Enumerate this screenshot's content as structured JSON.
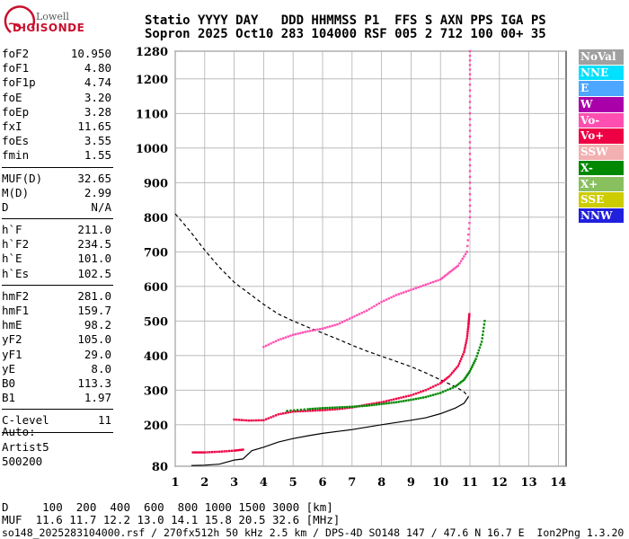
{
  "logo": {
    "line1": "Lowell",
    "line2": "DIGISONDE"
  },
  "header": {
    "row1": "Statio YYYY DAY   DDD HHMMSS P1  FFS S AXN PPS IGA PS",
    "row2": "Sopron 2025 Oct10 283 104000 RSF 005 2 712 100 00+ 35"
  },
  "params": [
    {
      "group": [
        {
          "name": "foF2",
          "value": "10.950"
        },
        {
          "name": "foF1",
          "value": "4.80"
        },
        {
          "name": "foF1p",
          "value": "4.74"
        },
        {
          "name": "foE",
          "value": "3.20"
        },
        {
          "name": "foEp",
          "value": "3.28"
        },
        {
          "name": "fxI",
          "value": "11.65"
        },
        {
          "name": "foEs",
          "value": "3.55"
        },
        {
          "name": "fmin",
          "value": "1.55"
        }
      ]
    },
    {
      "group": [
        {
          "name": "MUF(D)",
          "value": "32.65"
        },
        {
          "name": "M(D)",
          "value": "2.99"
        },
        {
          "name": "D",
          "value": "N/A"
        }
      ]
    },
    {
      "group": [
        {
          "name": "h`F",
          "value": "211.0"
        },
        {
          "name": "h`F2",
          "value": "234.5"
        },
        {
          "name": "h`E",
          "value": "101.0"
        },
        {
          "name": "h`Es",
          "value": "102.5"
        }
      ]
    },
    {
      "group": [
        {
          "name": "hmF2",
          "value": "281.0"
        },
        {
          "name": "hmF1",
          "value": "159.7"
        },
        {
          "name": "hmE",
          "value": "98.2"
        },
        {
          "name": "yF2",
          "value": "105.0"
        },
        {
          "name": "yF1",
          "value": "29.0"
        },
        {
          "name": "yE",
          "value": "8.0"
        },
        {
          "name": "B0",
          "value": "113.3"
        },
        {
          "name": "B1",
          "value": "1.97"
        }
      ]
    },
    {
      "group": [
        {
          "name": "C-level",
          "value": "11"
        }
      ]
    }
  ],
  "auto": {
    "line1": "Auto:",
    "line2": "Artist5",
    "line3": "500200"
  },
  "legend": [
    {
      "label": "NoVal",
      "color": "#a0a0a0"
    },
    {
      "label": "NNE",
      "color": "#00e0ff"
    },
    {
      "label": "E",
      "color": "#4da6ff"
    },
    {
      "label": "W",
      "color": "#aa00aa"
    },
    {
      "label": "Vo-",
      "color": "#ff4fb0"
    },
    {
      "label": "Vo+",
      "color": "#ee0044"
    },
    {
      "label": "SSW",
      "color": "#f2b0b0"
    },
    {
      "label": "X-",
      "color": "#008800"
    },
    {
      "label": "X+",
      "color": "#88c060"
    },
    {
      "label": "SSE",
      "color": "#cccc00"
    },
    {
      "label": "NNW",
      "color": "#2020dd"
    }
  ],
  "muf_table": {
    "d_row": "D     100  200  400  600  800 1000 1500 3000 [km]",
    "muf_row": "MUF  11.6 11.7 12.2 13.0 14.1 15.8 20.5 32.6 [MHz]",
    "footer": "so148_2025283104000.rsf / 270fx512h 50 kHz 2.5 km / DPS-4D SO148 147 / 47.6 N 16.7 E  Ion2Png 1.3.20"
  },
  "chart_data": {
    "type": "scatter",
    "xlim": [
      1,
      14.5
    ],
    "ylim": [
      80,
      1280
    ],
    "xticks": [
      1,
      2,
      3,
      4,
      5,
      6,
      7,
      8,
      9,
      10,
      11,
      12,
      13,
      14
    ],
    "yticks": [
      80,
      200,
      300,
      400,
      500,
      600,
      700,
      800,
      900,
      1000,
      1100,
      1200,
      1280
    ],
    "grid": true,
    "series": [
      {
        "kind": "o-trace",
        "color": "#ee0044",
        "points": [
          [
            3.0,
            215
          ],
          [
            3.5,
            212
          ],
          [
            4.0,
            213
          ],
          [
            4.5,
            230
          ],
          [
            5.0,
            238
          ],
          [
            5.5,
            240
          ],
          [
            6.0,
            242
          ],
          [
            6.5,
            245
          ],
          [
            7.0,
            250
          ],
          [
            7.5,
            258
          ],
          [
            8.0,
            265
          ],
          [
            8.5,
            275
          ],
          [
            9.0,
            285
          ],
          [
            9.5,
            300
          ],
          [
            10.0,
            320
          ],
          [
            10.3,
            340
          ],
          [
            10.6,
            370
          ],
          [
            10.8,
            410
          ],
          [
            10.9,
            450
          ],
          [
            10.95,
            490
          ],
          [
            10.98,
            520
          ]
        ]
      },
      {
        "kind": "o-trace-2",
        "color": "#ff4fb0",
        "points": [
          [
            4.0,
            425
          ],
          [
            4.5,
            445
          ],
          [
            5.0,
            460
          ],
          [
            5.5,
            470
          ],
          [
            6.0,
            478
          ],
          [
            6.5,
            490
          ],
          [
            7.0,
            510
          ],
          [
            7.5,
            530
          ],
          [
            8.0,
            555
          ],
          [
            8.5,
            575
          ],
          [
            9.0,
            590
          ],
          [
            9.5,
            605
          ],
          [
            10.0,
            620
          ],
          [
            10.3,
            640
          ],
          [
            10.6,
            660
          ],
          [
            10.9,
            700
          ],
          [
            11.0,
            800
          ],
          [
            11.0,
            900
          ],
          [
            11.0,
            1000
          ],
          [
            11.0,
            1100
          ],
          [
            11.0,
            1200
          ],
          [
            11.0,
            1280
          ]
        ]
      },
      {
        "kind": "x-trace",
        "color": "#008800",
        "points": [
          [
            4.8,
            240
          ],
          [
            5.5,
            245
          ],
          [
            6.0,
            248
          ],
          [
            6.5,
            250
          ],
          [
            7.0,
            252
          ],
          [
            7.5,
            255
          ],
          [
            8.0,
            260
          ],
          [
            8.5,
            265
          ],
          [
            9.0,
            272
          ],
          [
            9.5,
            280
          ],
          [
            10.0,
            292
          ],
          [
            10.5,
            310
          ],
          [
            10.8,
            330
          ],
          [
            11.0,
            355
          ],
          [
            11.2,
            390
          ],
          [
            11.4,
            440
          ],
          [
            11.5,
            500
          ]
        ]
      },
      {
        "kind": "es-trace",
        "color": "#ee0044",
        "points": [
          [
            1.6,
            120
          ],
          [
            2.0,
            120
          ],
          [
            2.5,
            122
          ],
          [
            3.0,
            125
          ],
          [
            3.3,
            128
          ]
        ]
      }
    ],
    "profile": [
      [
        1.55,
        82
      ],
      [
        2.0,
        83
      ],
      [
        2.5,
        86
      ],
      [
        3.0,
        98
      ],
      [
        3.3,
        101
      ],
      [
        3.6,
        125
      ],
      [
        4.0,
        135
      ],
      [
        4.5,
        150
      ],
      [
        5.0,
        160
      ],
      [
        5.5,
        168
      ],
      [
        6.0,
        175
      ],
      [
        7.0,
        186
      ],
      [
        8.0,
        200
      ],
      [
        9.0,
        213
      ],
      [
        9.5,
        220
      ],
      [
        10.0,
        232
      ],
      [
        10.5,
        248
      ],
      [
        10.8,
        262
      ],
      [
        10.95,
        281
      ]
    ],
    "muf_curve": [
      [
        1.0,
        810
      ],
      [
        1.5,
        760
      ],
      [
        2.0,
        705
      ],
      [
        2.5,
        655
      ],
      [
        3.0,
        612
      ],
      [
        3.5,
        580
      ],
      [
        4.0,
        548
      ],
      [
        4.5,
        520
      ],
      [
        5.0,
        500
      ],
      [
        5.5,
        482
      ],
      [
        6.0,
        465
      ],
      [
        6.5,
        448
      ],
      [
        7.0,
        430
      ],
      [
        7.5,
        413
      ],
      [
        8.0,
        398
      ],
      [
        8.5,
        383
      ],
      [
        9.0,
        368
      ],
      [
        9.5,
        350
      ],
      [
        10.0,
        330
      ],
      [
        10.5,
        310
      ],
      [
        10.8,
        295
      ],
      [
        10.95,
        281
      ]
    ]
  }
}
